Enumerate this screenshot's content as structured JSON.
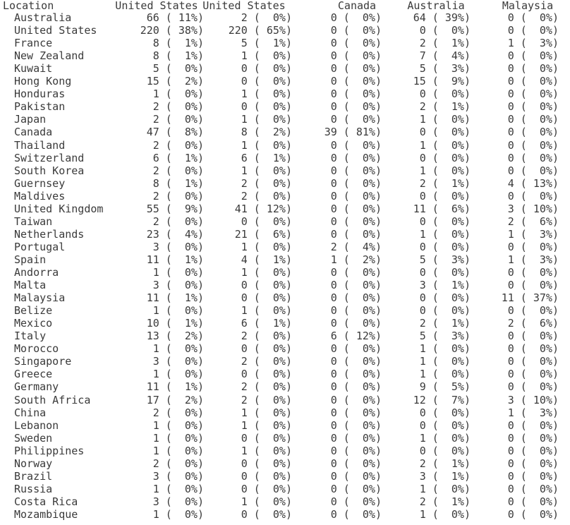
{
  "table": {
    "header": [
      "Location",
      "United States",
      "United States",
      "Canada",
      "Australia",
      "Malaysia"
    ],
    "rows": [
      [
        "Australia",
        "66 ( 11%)",
        "2 (  0%)",
        "0 (  0%)",
        "64 ( 39%)",
        "0 (  0%)"
      ],
      [
        "United States",
        "220 ( 38%)",
        "220 ( 65%)",
        "0 (  0%)",
        "0 (  0%)",
        "0 (  0%)"
      ],
      [
        "France",
        "8 (  1%)",
        "5 (  1%)",
        "0 (  0%)",
        "2 (  1%)",
        "1 (  3%)"
      ],
      [
        "New Zealand",
        "8 (  1%)",
        "1 (  0%)",
        "0 (  0%)",
        "7 (  4%)",
        "0 (  0%)"
      ],
      [
        "Kuwait",
        "5 (  0%)",
        "0 (  0%)",
        "0 (  0%)",
        "5 (  3%)",
        "0 (  0%)"
      ],
      [
        "Hong Kong",
        "15 (  2%)",
        "0 (  0%)",
        "0 (  0%)",
        "15 (  9%)",
        "0 (  0%)"
      ],
      [
        "Honduras",
        "1 (  0%)",
        "1 (  0%)",
        "0 (  0%)",
        "0 (  0%)",
        "0 (  0%)"
      ],
      [
        "Pakistan",
        "2 (  0%)",
        "0 (  0%)",
        "0 (  0%)",
        "2 (  1%)",
        "0 (  0%)"
      ],
      [
        "Japan",
        "2 (  0%)",
        "1 (  0%)",
        "0 (  0%)",
        "1 (  0%)",
        "0 (  0%)"
      ],
      [
        "Canada",
        "47 (  8%)",
        "8 (  2%)",
        "39 ( 81%)",
        "0 (  0%)",
        "0 (  0%)"
      ],
      [
        "Thailand",
        "2 (  0%)",
        "1 (  0%)",
        "0 (  0%)",
        "1 (  0%)",
        "0 (  0%)"
      ],
      [
        "Switzerland",
        "6 (  1%)",
        "6 (  1%)",
        "0 (  0%)",
        "0 (  0%)",
        "0 (  0%)"
      ],
      [
        "South Korea",
        "2 (  0%)",
        "1 (  0%)",
        "0 (  0%)",
        "1 (  0%)",
        "0 (  0%)"
      ],
      [
        "Guernsey",
        "8 (  1%)",
        "2 (  0%)",
        "0 (  0%)",
        "2 (  1%)",
        "4 ( 13%)"
      ],
      [
        "Maldives",
        "2 (  0%)",
        "2 (  0%)",
        "0 (  0%)",
        "0 (  0%)",
        "0 (  0%)"
      ],
      [
        "United Kingdom",
        "55 (  9%)",
        "41 ( 12%)",
        "0 (  0%)",
        "11 (  6%)",
        "3 ( 10%)"
      ],
      [
        "Taiwan",
        "2 (  0%)",
        "0 (  0%)",
        "0 (  0%)",
        "0 (  0%)",
        "2 (  6%)"
      ],
      [
        "Netherlands",
        "23 (  4%)",
        "21 (  6%)",
        "0 (  0%)",
        "1 (  0%)",
        "1 (  3%)"
      ],
      [
        "Portugal",
        "3 (  0%)",
        "1 (  0%)",
        "2 (  4%)",
        "0 (  0%)",
        "0 (  0%)"
      ],
      [
        "Spain",
        "11 (  1%)",
        "4 (  1%)",
        "1 (  2%)",
        "5 (  3%)",
        "1 (  3%)"
      ],
      [
        "Andorra",
        "1 (  0%)",
        "1 (  0%)",
        "0 (  0%)",
        "0 (  0%)",
        "0 (  0%)"
      ],
      [
        "Malta",
        "3 (  0%)",
        "0 (  0%)",
        "0 (  0%)",
        "3 (  1%)",
        "0 (  0%)"
      ],
      [
        "Malaysia",
        "11 (  1%)",
        "0 (  0%)",
        "0 (  0%)",
        "0 (  0%)",
        "11 ( 37%)"
      ],
      [
        "Belize",
        "1 (  0%)",
        "1 (  0%)",
        "0 (  0%)",
        "0 (  0%)",
        "0 (  0%)"
      ],
      [
        "Mexico",
        "10 (  1%)",
        "6 (  1%)",
        "0 (  0%)",
        "2 (  1%)",
        "2 (  6%)"
      ],
      [
        "Italy",
        "13 (  2%)",
        "2 (  0%)",
        "6 ( 12%)",
        "5 (  3%)",
        "0 (  0%)"
      ],
      [
        "Morocco",
        "1 (  0%)",
        "0 (  0%)",
        "0 (  0%)",
        "1 (  0%)",
        "0 (  0%)"
      ],
      [
        "Singapore",
        "3 (  0%)",
        "2 (  0%)",
        "0 (  0%)",
        "1 (  0%)",
        "0 (  0%)"
      ],
      [
        "Greece",
        "1 (  0%)",
        "0 (  0%)",
        "0 (  0%)",
        "1 (  0%)",
        "0 (  0%)"
      ],
      [
        "Germany",
        "11 (  1%)",
        "2 (  0%)",
        "0 (  0%)",
        "9 (  5%)",
        "0 (  0%)"
      ],
      [
        "South Africa",
        "17 (  2%)",
        "2 (  0%)",
        "0 (  0%)",
        "12 (  7%)",
        "3 ( 10%)"
      ],
      [
        "China",
        "2 (  0%)",
        "1 (  0%)",
        "0 (  0%)",
        "0 (  0%)",
        "1 (  3%)"
      ],
      [
        "Lebanon",
        "1 (  0%)",
        "1 (  0%)",
        "0 (  0%)",
        "0 (  0%)",
        "0 (  0%)"
      ],
      [
        "Sweden",
        "1 (  0%)",
        "0 (  0%)",
        "0 (  0%)",
        "1 (  0%)",
        "0 (  0%)"
      ],
      [
        "Philippines",
        "1 (  0%)",
        "1 (  0%)",
        "0 (  0%)",
        "0 (  0%)",
        "0 (  0%)"
      ],
      [
        "Norway",
        "2 (  0%)",
        "0 (  0%)",
        "0 (  0%)",
        "2 (  1%)",
        "0 (  0%)"
      ],
      [
        "Brazil",
        "3 (  0%)",
        "0 (  0%)",
        "0 (  0%)",
        "3 (  1%)",
        "0 (  0%)"
      ],
      [
        "Russia",
        "1 (  0%)",
        "0 (  0%)",
        "0 (  0%)",
        "1 (  0%)",
        "0 (  0%)"
      ],
      [
        "Costa Rica",
        "3 (  0%)",
        "1 (  0%)",
        "0 (  0%)",
        "2 (  1%)",
        "0 (  0%)"
      ],
      [
        "Mozambique",
        "1 (  0%)",
        "0 (  0%)",
        "0 (  0%)",
        "1 (  0%)",
        "0 (  0%)"
      ]
    ]
  }
}
